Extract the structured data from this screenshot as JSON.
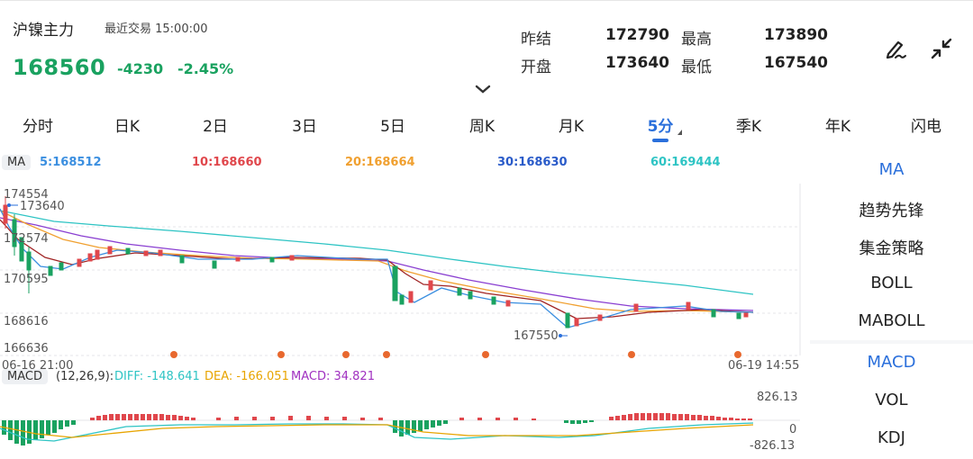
{
  "header": {
    "title": "沪镍主力",
    "last_trade": "最近交易  15:00:00",
    "price": "168560",
    "change": "-4230",
    "change_pct": "-2.45%",
    "stats": [
      {
        "label": "昨结",
        "value": "172790"
      },
      {
        "label": "最高",
        "value": "173890"
      },
      {
        "label": "开盘",
        "value": "173640"
      },
      {
        "label": "最低",
        "value": "167540"
      }
    ],
    "icons": [
      "pen-icon",
      "collapse-arrows-icon",
      "chevron-down-icon"
    ]
  },
  "tabs": [
    {
      "label": "分时",
      "active": false
    },
    {
      "label": "日K",
      "active": false
    },
    {
      "label": "2日",
      "active": false
    },
    {
      "label": "3日",
      "active": false
    },
    {
      "label": "5日",
      "active": false
    },
    {
      "label": "周K",
      "active": false
    },
    {
      "label": "月K",
      "active": false
    },
    {
      "label": "5分",
      "active": true
    },
    {
      "label": "季K",
      "active": false
    },
    {
      "label": "年K",
      "active": false
    },
    {
      "label": "闪电",
      "active": false
    }
  ],
  "ma_legend": {
    "tag": "MA",
    "items": [
      {
        "label": "5:168512",
        "color": "#3b8fe0"
      },
      {
        "label": "10:168660",
        "color": "#e0474c"
      },
      {
        "label": "20:168664",
        "color": "#f0a030"
      },
      {
        "label": "30:168630",
        "color": "#2a5bc9"
      },
      {
        "label": "60:169444",
        "color": "#2ec4c4"
      }
    ]
  },
  "price_axis": {
    "labels": [
      "174554",
      "173640",
      "172574",
      "170595",
      "168616",
      "166636"
    ],
    "low_marker": "167550",
    "start_time": "06-16 21:00",
    "end_time": "06-19 14:55"
  },
  "macd_legend": {
    "tag": "MACD",
    "params": "(12,26,9):",
    "diff": "DIFF: -148.641",
    "dea": "DEA: -166.051",
    "macd": "MACD: 34.821",
    "axis_top": "826.13",
    "axis_zero": "0",
    "axis_bottom": "-826.13"
  },
  "sidebar": {
    "top": [
      {
        "label": "MA",
        "active": true
      },
      {
        "label": "趋势先锋",
        "active": false
      },
      {
        "label": "集金策略",
        "active": false
      },
      {
        "label": "BOLL",
        "active": false
      },
      {
        "label": "MABOLL",
        "active": false
      }
    ],
    "bottom": [
      {
        "label": "MACD",
        "active": true
      },
      {
        "label": "VOL",
        "active": false
      },
      {
        "label": "KDJ",
        "active": false
      }
    ]
  },
  "colors": {
    "up": "#e0474c",
    "down": "#1aa260",
    "accent": "#2a6fdb",
    "signal_dot": "#e8682e"
  }
}
